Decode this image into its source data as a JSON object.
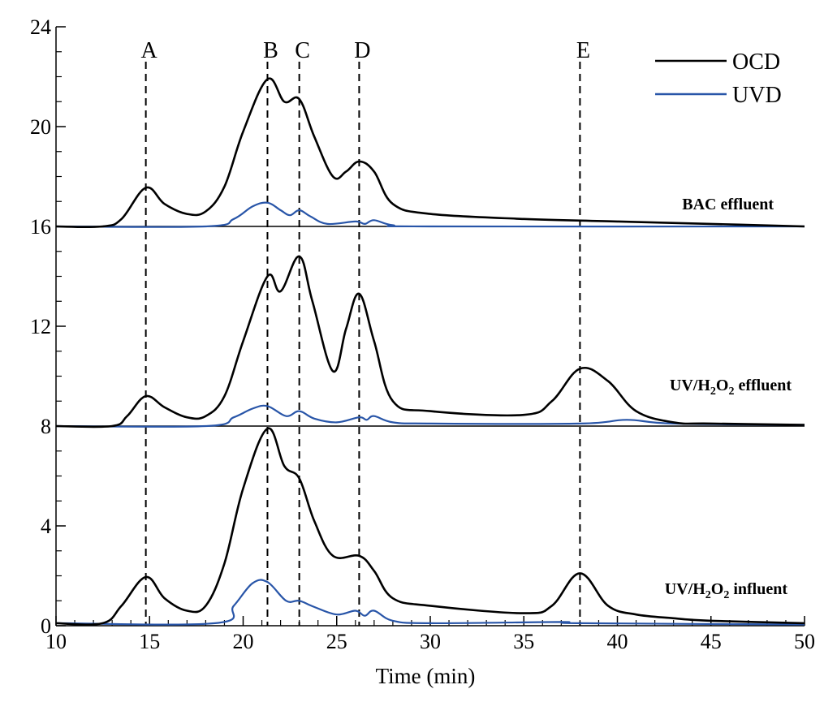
{
  "chart_data": {
    "type": "line",
    "xlabel": "Time (min)",
    "ylabel": "",
    "xlim": [
      10,
      50
    ],
    "ylim": [
      0,
      24
    ],
    "x_ticks": [
      10,
      15,
      20,
      25,
      30,
      35,
      40,
      45,
      50
    ],
    "y_ticks": [
      0,
      4,
      8,
      12,
      16,
      20,
      24
    ],
    "legend": [
      {
        "name": "OCD",
        "color": "#000000"
      },
      {
        "name": "UVD",
        "color": "#2855a8"
      }
    ],
    "peak_markers": [
      {
        "label": "A",
        "x": 14.8
      },
      {
        "label": "B",
        "x": 21.3
      },
      {
        "label": "C",
        "x": 23.0
      },
      {
        "label": "D",
        "x": 26.2
      },
      {
        "label": "E",
        "x": 38.0
      }
    ],
    "panels": [
      {
        "name": "BAC effluent",
        "baseline": 16,
        "top": 24,
        "series": [
          {
            "name": "OCD",
            "color": "#000000",
            "points": [
              [
                10,
                16.0
              ],
              [
                12.5,
                16.0
              ],
              [
                13.5,
                16.3
              ],
              [
                14.8,
                17.55
              ],
              [
                15.8,
                16.9
              ],
              [
                17,
                16.5
              ],
              [
                18,
                16.6
              ],
              [
                19,
                17.6
              ],
              [
                20,
                19.8
              ],
              [
                21.3,
                21.9
              ],
              [
                22.2,
                21.0
              ],
              [
                23.0,
                21.1
              ],
              [
                23.8,
                19.6
              ],
              [
                24.8,
                18.0
              ],
              [
                25.5,
                18.2
              ],
              [
                26.2,
                18.6
              ],
              [
                27,
                18.2
              ],
              [
                28,
                16.9
              ],
              [
                30,
                16.5
              ],
              [
                35,
                16.3
              ],
              [
                40,
                16.2
              ],
              [
                45,
                16.1
              ],
              [
                50,
                16.0
              ]
            ]
          },
          {
            "name": "UVD",
            "color": "#2855a8",
            "points": [
              [
                10,
                16.0
              ],
              [
                18,
                16.0
              ],
              [
                19.5,
                16.3
              ],
              [
                20.5,
                16.8
              ],
              [
                21.3,
                16.95
              ],
              [
                22.0,
                16.65
              ],
              [
                22.5,
                16.45
              ],
              [
                23.0,
                16.65
              ],
              [
                23.6,
                16.4
              ],
              [
                24.5,
                16.1
              ],
              [
                26.0,
                16.2
              ],
              [
                26.5,
                16.1
              ],
              [
                27.0,
                16.25
              ],
              [
                28.0,
                16.05
              ],
              [
                30,
                16.0
              ],
              [
                50,
                16.0
              ]
            ]
          }
        ]
      },
      {
        "name": "UV/H2O2 effluent",
        "baseline": 8,
        "top": 16,
        "series": [
          {
            "name": "OCD",
            "color": "#000000",
            "points": [
              [
                10,
                8.0
              ],
              [
                13,
                8.0
              ],
              [
                13.8,
                8.4
              ],
              [
                14.8,
                9.2
              ],
              [
                15.8,
                8.75
              ],
              [
                17,
                8.35
              ],
              [
                18,
                8.4
              ],
              [
                19,
                9.2
              ],
              [
                20,
                11.4
              ],
              [
                21.3,
                14.0
              ],
              [
                22.0,
                13.4
              ],
              [
                23.0,
                14.8
              ],
              [
                23.7,
                13.0
              ],
              [
                24.8,
                10.2
              ],
              [
                25.5,
                11.9
              ],
              [
                26.2,
                13.3
              ],
              [
                27,
                11.4
              ],
              [
                28,
                9.0
              ],
              [
                30,
                8.6
              ],
              [
                35,
                8.45
              ],
              [
                36.5,
                9.0
              ],
              [
                38,
                10.3
              ],
              [
                39.5,
                9.8
              ],
              [
                41,
                8.6
              ],
              [
                43,
                8.15
              ],
              [
                45,
                8.1
              ],
              [
                50,
                8.05
              ]
            ]
          },
          {
            "name": "UVD",
            "color": "#2855a8",
            "points": [
              [
                10,
                8.0
              ],
              [
                18,
                8.0
              ],
              [
                19.5,
                8.35
              ],
              [
                20.5,
                8.7
              ],
              [
                21.3,
                8.8
              ],
              [
                22.3,
                8.4
              ],
              [
                23.0,
                8.6
              ],
              [
                23.8,
                8.3
              ],
              [
                25,
                8.15
              ],
              [
                26.2,
                8.35
              ],
              [
                26.6,
                8.25
              ],
              [
                27,
                8.4
              ],
              [
                28,
                8.15
              ],
              [
                30,
                8.1
              ],
              [
                38,
                8.1
              ],
              [
                40.5,
                8.25
              ],
              [
                43,
                8.1
              ],
              [
                50,
                8.05
              ]
            ]
          }
        ]
      },
      {
        "name": "UV/H2O2 influent",
        "baseline": 0,
        "top": 8,
        "series": [
          {
            "name": "OCD",
            "color": "#000000",
            "points": [
              [
                10,
                0.1
              ],
              [
                12.5,
                0.1
              ],
              [
                13.5,
                0.8
              ],
              [
                14.8,
                1.95
              ],
              [
                15.8,
                1.1
              ],
              [
                17,
                0.6
              ],
              [
                18,
                0.8
              ],
              [
                19,
                2.5
              ],
              [
                20,
                5.5
              ],
              [
                21.3,
                7.9
              ],
              [
                22.2,
                6.4
              ],
              [
                23.0,
                5.9
              ],
              [
                23.8,
                4.2
              ],
              [
                24.8,
                2.8
              ],
              [
                26.2,
                2.8
              ],
              [
                27,
                2.2
              ],
              [
                28,
                1.1
              ],
              [
                30,
                0.8
              ],
              [
                35,
                0.5
              ],
              [
                36.5,
                0.8
              ],
              [
                38,
                2.1
              ],
              [
                39.5,
                0.8
              ],
              [
                41,
                0.45
              ],
              [
                43,
                0.3
              ],
              [
                45,
                0.2
              ],
              [
                50,
                0.1
              ]
            ]
          },
          {
            "name": "UVD",
            "color": "#2855a8",
            "points": [
              [
                10,
                0.1
              ],
              [
                18.5,
                0.1
              ],
              [
                19.5,
                0.8
              ],
              [
                20.5,
                1.7
              ],
              [
                21.3,
                1.75
              ],
              [
                22.3,
                1.0
              ],
              [
                23.0,
                1.0
              ],
              [
                23.8,
                0.75
              ],
              [
                25,
                0.45
              ],
              [
                26.0,
                0.6
              ],
              [
                26.5,
                0.4
              ],
              [
                27.0,
                0.6
              ],
              [
                28.0,
                0.2
              ],
              [
                30,
                0.1
              ],
              [
                37,
                0.15
              ],
              [
                38,
                0.1
              ],
              [
                50,
                0.05
              ]
            ]
          }
        ]
      }
    ]
  },
  "labels": {
    "panel_bac_line1": "BAC effluent",
    "panel_eff_pre": "UV/H",
    "panel_eff_sub2": "2",
    "panel_eff_mid": "O",
    "panel_eff_sub2b": "2",
    "panel_eff_post": " effluent",
    "panel_inf_pre": "UV/H",
    "panel_inf_sub2": "2",
    "panel_inf_mid": "O",
    "panel_inf_sub2b": "2",
    "panel_inf_post": " influent"
  }
}
